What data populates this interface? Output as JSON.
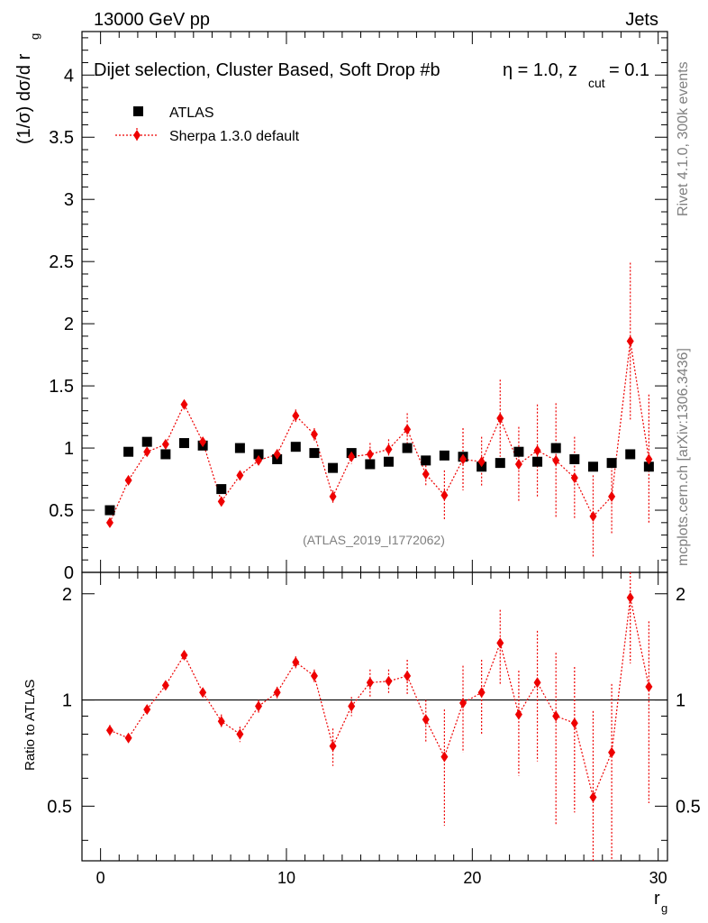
{
  "header": {
    "left": "13000 GeV pp",
    "right": "Jets",
    "side_upper": "Rivet 4.1.0,  300k events",
    "side_lower": "mcplots.cern.ch [arXiv:1306.3436]"
  },
  "chart_data": {
    "type": "scatter",
    "title": "Dijet selection, Cluster Based, Soft Drop #b",
    "title_eta": "η = 1.0, z",
    "title_cut": "cut",
    "title_tail": " = 0.1",
    "watermark": "(ATLAS_2019_I1772062)",
    "ylabel_prefix": "(1/σ) dσ/d r",
    "ylabel_sub": "g",
    "xlabel": "r",
    "xlabel_sub": "g",
    "ratio_ylabel": "Ratio to ATLAS",
    "xlim": [
      -1,
      30.5
    ],
    "main_ylim": [
      0,
      4.35
    ],
    "ratio_ylim": [
      0.35,
      2.3
    ],
    "x_ticks": [
      "0",
      "10",
      "20",
      "30"
    ],
    "main_y_ticks": [
      "0",
      "0.5",
      "1",
      "1.5",
      "2",
      "2.5",
      "3",
      "3.5",
      "4"
    ],
    "ratio_y_ticks": [
      "0.5",
      "1",
      "2"
    ],
    "legend": {
      "data_label": "ATLAS",
      "mc_label": "Sherpa 1.3.0 default",
      "position": "top-left"
    },
    "x": [
      0.5,
      1.5,
      2.5,
      3.5,
      4.5,
      5.5,
      6.5,
      7.5,
      8.5,
      9.5,
      10.5,
      11.5,
      12.5,
      13.5,
      14.5,
      15.5,
      16.5,
      17.5,
      18.5,
      19.5,
      20.5,
      21.5,
      22.5,
      23.5,
      24.5,
      25.5,
      26.5,
      27.5,
      28.5,
      29.5
    ],
    "series": [
      {
        "name": "ATLAS",
        "color": "#000000",
        "marker": "square",
        "values": [
          0.5,
          0.97,
          1.05,
          0.95,
          1.04,
          1.02,
          0.67,
          1.0,
          0.95,
          0.91,
          1.01,
          0.96,
          0.84,
          0.96,
          0.87,
          0.89,
          1.0,
          0.9,
          0.94,
          0.93,
          0.85,
          0.88,
          0.97,
          0.89,
          1.0,
          0.91,
          0.85,
          0.88,
          0.95,
          0.85
        ]
      },
      {
        "name": "Sherpa 1.3.0 default",
        "color": "#ee0000",
        "marker": "diamond",
        "values": [
          0.4,
          0.74,
          0.97,
          1.03,
          1.35,
          1.05,
          0.57,
          0.78,
          0.9,
          0.95,
          1.26,
          1.11,
          0.61,
          0.93,
          0.95,
          0.99,
          1.15,
          0.79,
          0.62,
          0.91,
          0.89,
          1.24,
          0.87,
          0.98,
          0.9,
          0.76,
          0.45,
          0.61,
          1.86,
          0.91
        ],
        "errors": [
          0.02,
          0.02,
          0.02,
          0.02,
          0.03,
          0.03,
          0.03,
          0.03,
          0.04,
          0.04,
          0.05,
          0.05,
          0.05,
          0.06,
          0.09,
          0.08,
          0.13,
          0.1,
          0.2,
          0.25,
          0.2,
          0.31,
          0.3,
          0.37,
          0.46,
          0.33,
          0.33,
          0.3,
          0.63,
          0.52
        ]
      }
    ],
    "ratio": {
      "values": [
        0.82,
        0.78,
        0.94,
        1.1,
        1.34,
        1.05,
        0.87,
        0.8,
        0.96,
        1.05,
        1.28,
        1.17,
        0.74,
        0.96,
        1.12,
        1.13,
        1.17,
        0.88,
        0.69,
        0.98,
        1.05,
        1.45,
        0.91,
        1.12,
        0.9,
        0.86,
        0.53,
        0.71,
        1.95,
        1.09
      ],
      "errors": [
        0.03,
        0.02,
        0.02,
        0.03,
        0.03,
        0.03,
        0.04,
        0.04,
        0.04,
        0.04,
        0.05,
        0.05,
        0.09,
        0.06,
        0.1,
        0.09,
        0.13,
        0.12,
        0.25,
        0.27,
        0.25,
        0.35,
        0.3,
        0.45,
        0.46,
        0.38,
        0.4,
        0.4,
        0.68,
        0.58
      ]
    }
  }
}
